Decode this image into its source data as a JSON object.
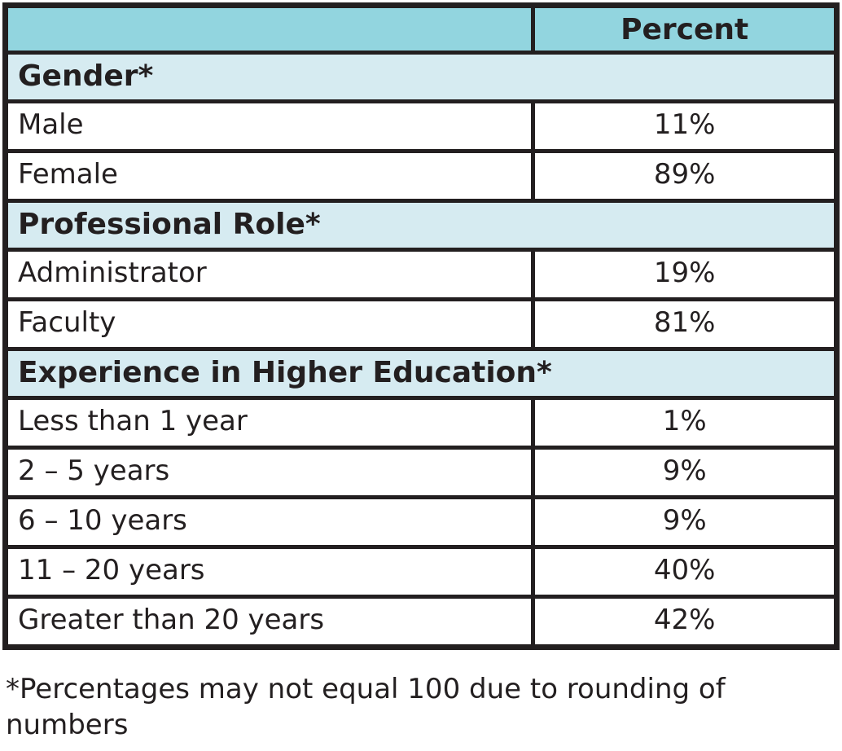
{
  "table": {
    "header": {
      "blank_label": "",
      "percent_label": "Percent"
    },
    "sections": [
      {
        "title": "Gender*",
        "rows": [
          {
            "label": "Male",
            "value": "11%"
          },
          {
            "label": "Female",
            "value": "89%"
          }
        ]
      },
      {
        "title": "Professional Role*",
        "rows": [
          {
            "label": "Administrator",
            "value": "19%"
          },
          {
            "label": "Faculty",
            "value": "81%"
          }
        ]
      },
      {
        "title": "Experience in Higher Education*",
        "rows": [
          {
            "label": "Less than 1 year",
            "value": "1%"
          },
          {
            "label": "2 – 5 years",
            "value": "9%"
          },
          {
            "label": "6 – 10 years",
            "value": "9%"
          },
          {
            "label": "11 – 20 years",
            "value": "40%"
          },
          {
            "label": "Greater than 20 years",
            "value": "42%"
          }
        ]
      }
    ],
    "footnote": "*Percentages may not equal 100 due to rounding of numbers"
  },
  "chart_data": {
    "type": "table",
    "title": "Percent",
    "categories": [
      "Male",
      "Female",
      "Administrator",
      "Faculty",
      "Less than 1 year",
      "2 – 5 years",
      "6 – 10 years",
      "11 – 20 years",
      "Greater than 20 years"
    ],
    "values": [
      11,
      89,
      19,
      81,
      1,
      9,
      9,
      40,
      42
    ],
    "groups": [
      "Gender*",
      "Gender*",
      "Professional Role*",
      "Professional Role*",
      "Experience in Higher Education*",
      "Experience in Higher Education*",
      "Experience in Higher Education*",
      "Experience in Higher Education*",
      "Experience in Higher Education*"
    ]
  },
  "colors": {
    "header_bg": "#92D5DF",
    "section_bg": "#D6EBF1",
    "border": "#231F20",
    "text": "#231F20"
  }
}
